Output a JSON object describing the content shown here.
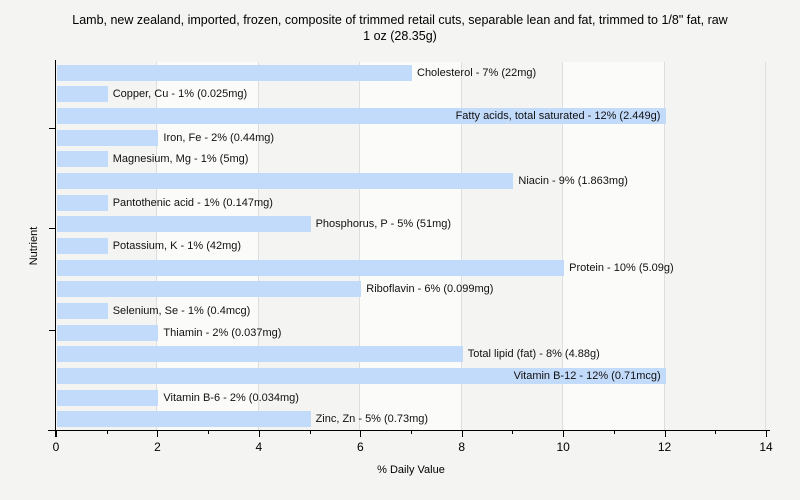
{
  "title": {
    "line1": "Lamb, new zealand, imported, frozen, composite of trimmed retail cuts, separable lean and fat, trimmed to 1/8\" fat, raw",
    "line2": "1 oz (28.35g)"
  },
  "chart_data": {
    "type": "bar",
    "orientation": "horizontal",
    "title": "Lamb, new zealand, imported, frozen, composite of trimmed retail cuts, separable lean and fat, trimmed to 1/8\" fat, raw 1 oz (28.35g)",
    "xlabel": "% Daily Value",
    "ylabel": "Nutrient",
    "xlim": [
      0,
      14
    ],
    "x_major_ticks": [
      0,
      2,
      4,
      6,
      8,
      10,
      12,
      14
    ],
    "x_minor_ticks": [
      1,
      3,
      5,
      7,
      9,
      11,
      13
    ],
    "grid": "vertical gridlines at major ticks",
    "legend": "none",
    "bars": [
      {
        "nutrient": "Cholesterol",
        "percent": 7,
        "amount": "22mg",
        "label": "Cholesterol - 7% (22mg)"
      },
      {
        "nutrient": "Copper, Cu",
        "percent": 1,
        "amount": "0.025mg",
        "label": "Copper, Cu - 1% (0.025mg)"
      },
      {
        "nutrient": "Fatty acids, total saturated",
        "percent": 12,
        "amount": "2.449g",
        "label": "Fatty acids, total saturated - 12% (2.449g)"
      },
      {
        "nutrient": "Iron, Fe",
        "percent": 2,
        "amount": "0.44mg",
        "label": "Iron, Fe - 2% (0.44mg)"
      },
      {
        "nutrient": "Magnesium, Mg",
        "percent": 1,
        "amount": "5mg",
        "label": "Magnesium, Mg - 1% (5mg)"
      },
      {
        "nutrient": "Niacin",
        "percent": 9,
        "amount": "1.863mg",
        "label": "Niacin - 9% (1.863mg)"
      },
      {
        "nutrient": "Pantothenic acid",
        "percent": 1,
        "amount": "0.147mg",
        "label": "Pantothenic acid - 1% (0.147mg)"
      },
      {
        "nutrient": "Phosphorus, P",
        "percent": 5,
        "amount": "51mg",
        "label": "Phosphorus, P - 5% (51mg)"
      },
      {
        "nutrient": "Potassium, K",
        "percent": 1,
        "amount": "42mg",
        "label": "Potassium, K - 1% (42mg)"
      },
      {
        "nutrient": "Protein",
        "percent": 10,
        "amount": "5.09g",
        "label": "Protein - 10% (5.09g)"
      },
      {
        "nutrient": "Riboflavin",
        "percent": 6,
        "amount": "0.099mg",
        "label": "Riboflavin - 6% (0.099mg)"
      },
      {
        "nutrient": "Selenium, Se",
        "percent": 1,
        "amount": "0.4mcg",
        "label": "Selenium, Se - 1% (0.4mcg)"
      },
      {
        "nutrient": "Thiamin",
        "percent": 2,
        "amount": "0.037mg",
        "label": "Thiamin - 2% (0.037mg)"
      },
      {
        "nutrient": "Total lipid (fat)",
        "percent": 8,
        "amount": "4.88g",
        "label": "Total lipid (fat) - 8% (4.88g)"
      },
      {
        "nutrient": "Vitamin B-12",
        "percent": 12,
        "amount": "0.71mcg",
        "label": "Vitamin B-12 - 12% (0.71mcg)"
      },
      {
        "nutrient": "Vitamin B-6",
        "percent": 2,
        "amount": "0.034mg",
        "label": "Vitamin B-6 - 2% (0.034mg)"
      },
      {
        "nutrient": "Zinc, Zn",
        "percent": 5,
        "amount": "0.73mg",
        "label": "Zinc, Zn - 5% (0.73mg)"
      }
    ],
    "colors": {
      "bar_fill": "#c3dbfa",
      "gridline": "#dedede",
      "axis": "#000000",
      "page_background": "#f4f4f2",
      "band_light": "#fbfbfa",
      "band_dark": "#f4f4f2"
    }
  }
}
